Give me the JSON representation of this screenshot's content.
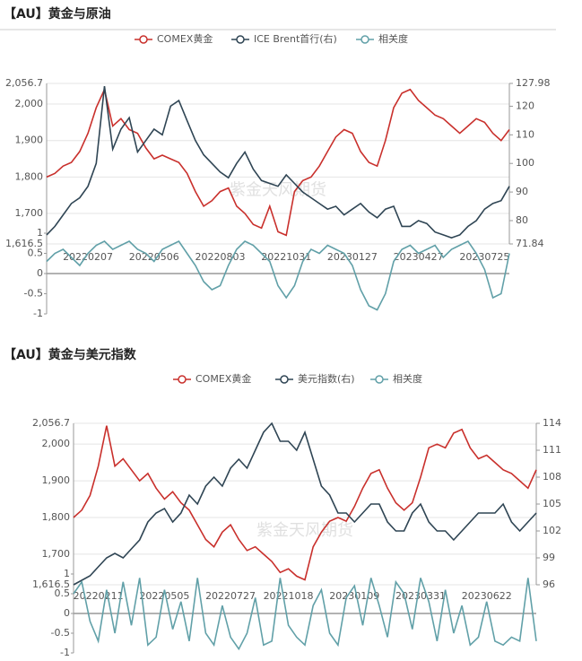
{
  "chart_data": [
    {
      "type": "line",
      "title": "【AU】黄金与原油",
      "watermark": "紫金天风期货",
      "categories": [
        null,
        null,
        null,
        null,
        null,
        "20220207",
        null,
        null,
        null,
        null,
        null,
        null,
        null,
        "20220506",
        null,
        null,
        null,
        null,
        null,
        null,
        null,
        "20220803",
        null,
        null,
        null,
        null,
        null,
        null,
        null,
        "20221031",
        null,
        null,
        null,
        null,
        null,
        null,
        null,
        "20230127",
        null,
        null,
        null,
        null,
        null,
        null,
        null,
        "20230427",
        null,
        null,
        null,
        null,
        null,
        null,
        null,
        "20230725",
        null,
        null,
        null
      ],
      "series": [
        {
          "name": "COMEX黄金",
          "color": "#c9302c",
          "axis": "y",
          "values": [
            1800,
            1810,
            1830,
            1840,
            1870,
            1920,
            1990,
            2040,
            1940,
            1960,
            1930,
            1920,
            1880,
            1850,
            1860,
            1850,
            1840,
            1810,
            1760,
            1720,
            1735,
            1760,
            1770,
            1720,
            1700,
            1670,
            1660,
            1720,
            1650,
            1640,
            1760,
            1790,
            1800,
            1830,
            1870,
            1910,
            1930,
            1920,
            1870,
            1840,
            1830,
            1900,
            1990,
            2030,
            2040,
            2010,
            1990,
            1970,
            1960,
            1940,
            1920,
            1940,
            1960,
            1950,
            1920,
            1900,
            1930
          ]
        },
        {
          "name": "ICE Brent首行(右)",
          "color": "#2f4554",
          "axis": "y2",
          "values": [
            75,
            78,
            82,
            86,
            88,
            92,
            100,
            127,
            105,
            112,
            116,
            104,
            108,
            112,
            110,
            120,
            122,
            115,
            108,
            103,
            100,
            97,
            95,
            100,
            104,
            98,
            94,
            93,
            92,
            96,
            93,
            90,
            88,
            86,
            84,
            85,
            82,
            84,
            86,
            83,
            81,
            84,
            85,
            78,
            78,
            80,
            79,
            76,
            75,
            74,
            75,
            78,
            80,
            84,
            86,
            87,
            92
          ]
        },
        {
          "name": "相关度",
          "color": "#61a0a8",
          "axis": "y3",
          "values": [
            0.3,
            0.5,
            0.6,
            0.4,
            0.2,
            0.5,
            0.7,
            0.8,
            0.6,
            0.7,
            0.8,
            0.6,
            0.5,
            0.3,
            0.6,
            0.7,
            0.8,
            0.5,
            0.2,
            -0.2,
            -0.4,
            -0.3,
            0.2,
            0.6,
            0.8,
            0.7,
            0.5,
            0.3,
            -0.3,
            -0.6,
            -0.3,
            0.3,
            0.6,
            0.5,
            0.7,
            0.6,
            0.5,
            0.2,
            -0.4,
            -0.8,
            -0.9,
            -0.5,
            0.3,
            0.6,
            0.7,
            0.5,
            0.6,
            0.7,
            0.4,
            0.6,
            0.7,
            0.8,
            0.5,
            0.1,
            -0.6,
            -0.5,
            0.5
          ]
        }
      ],
      "ylim": [
        1616.5,
        2056.7
      ],
      "yticks": [
        {
          "value": 1616.5,
          "label": "1,616.5"
        },
        {
          "value": 1700,
          "label": "1,700"
        },
        {
          "value": 1800,
          "label": "1,800"
        },
        {
          "value": 1900,
          "label": "1,900"
        },
        {
          "value": 2000,
          "label": "2,000"
        },
        {
          "value": 2056.7,
          "label": "2,056.7"
        }
      ],
      "y2lim": [
        71.84,
        127.98
      ],
      "y2ticks": [
        71.84,
        80,
        90,
        100,
        110,
        120,
        127.98
      ],
      "y3lim": [
        -1,
        1
      ],
      "y3ticks": [
        -1,
        -0.5,
        0,
        0.5,
        1
      ],
      "grid": true
    },
    {
      "type": "line",
      "title": "【AU】黄金与美元指数",
      "watermark": "紫金天风期货",
      "categories": [
        null,
        null,
        null,
        "20220211",
        null,
        null,
        null,
        null,
        null,
        null,
        null,
        "20220505",
        null,
        null,
        null,
        null,
        null,
        null,
        null,
        "20220727",
        null,
        null,
        null,
        null,
        null,
        null,
        "20221018",
        null,
        null,
        null,
        null,
        null,
        null,
        null,
        "20230109",
        null,
        null,
        null,
        null,
        null,
        null,
        null,
        "20230331",
        null,
        null,
        null,
        null,
        null,
        null,
        null,
        "20230622",
        null,
        null,
        null,
        null,
        null,
        null
      ],
      "series": [
        {
          "name": "COMEX黄金",
          "color": "#c9302c",
          "axis": "y",
          "values": [
            1800,
            1820,
            1860,
            1940,
            2050,
            1940,
            1960,
            1930,
            1900,
            1920,
            1880,
            1850,
            1870,
            1840,
            1820,
            1780,
            1740,
            1720,
            1760,
            1780,
            1740,
            1710,
            1720,
            1700,
            1680,
            1650,
            1660,
            1640,
            1630,
            1720,
            1760,
            1790,
            1800,
            1790,
            1830,
            1880,
            1920,
            1930,
            1880,
            1840,
            1820,
            1840,
            1910,
            1990,
            2000,
            1990,
            2030,
            2040,
            1990,
            1960,
            1970,
            1950,
            1930,
            1920,
            1900,
            1880,
            1930
          ]
        },
        {
          "name": "美元指数(右)",
          "color": "#2f4554",
          "axis": "y2",
          "values": [
            96,
            96.5,
            97,
            98,
            99,
            99.5,
            99,
            100,
            101,
            103,
            104,
            104.5,
            103,
            104,
            106,
            105,
            107,
            108,
            107,
            109,
            110,
            109,
            111,
            113,
            114,
            112,
            112,
            111,
            113,
            110,
            107,
            106,
            104,
            104,
            103,
            104,
            105,
            105,
            103,
            102,
            102,
            104,
            105,
            103,
            102,
            102,
            101,
            102,
            103,
            104,
            104,
            104,
            105,
            103,
            102,
            103,
            104
          ]
        },
        {
          "name": "相关度",
          "color": "#61a0a8",
          "axis": "y3",
          "values": [
            0.5,
            0.8,
            -0.2,
            -0.7,
            0.6,
            -0.5,
            0.8,
            -0.3,
            0.9,
            -0.8,
            -0.6,
            0.6,
            -0.4,
            0.3,
            -0.7,
            0.9,
            -0.5,
            -0.8,
            0.2,
            -0.6,
            -0.9,
            -0.5,
            0.4,
            -0.8,
            -0.7,
            0.9,
            -0.3,
            -0.6,
            -0.8,
            0.2,
            0.6,
            -0.5,
            -0.8,
            0.4,
            0.7,
            -0.3,
            0.9,
            0.2,
            -0.6,
            0.8,
            0.5,
            -0.4,
            0.9,
            0.3,
            -0.7,
            0.6,
            -0.5,
            0.2,
            -0.8,
            -0.6,
            0.3,
            -0.7,
            -0.8,
            -0.6,
            -0.7,
            0.9,
            -0.7
          ]
        }
      ],
      "ylim": [
        1616.5,
        2056.7
      ],
      "yticks": [
        {
          "value": 1616.5,
          "label": "1,616.5"
        },
        {
          "value": 1700,
          "label": "1,700"
        },
        {
          "value": 1800,
          "label": "1,800"
        },
        {
          "value": 1900,
          "label": "1,900"
        },
        {
          "value": 2000,
          "label": "2,000"
        },
        {
          "value": 2056.7,
          "label": "2,056.7"
        }
      ],
      "y2lim": [
        96,
        114
      ],
      "y2ticks": [
        96,
        99,
        102,
        105,
        108,
        111,
        114
      ],
      "y3lim": [
        -1,
        1
      ],
      "y3ticks": [
        -1,
        -0.5,
        0,
        0.5,
        1
      ],
      "grid": true
    }
  ]
}
